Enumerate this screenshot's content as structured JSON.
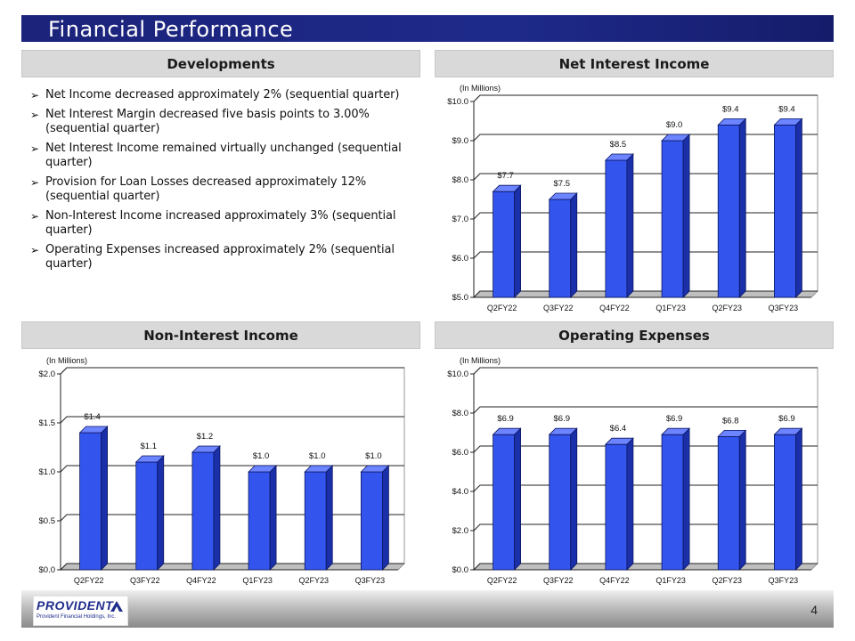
{
  "page": {
    "title": "Financial Performance",
    "page_number": "4"
  },
  "developments": {
    "heading": "Developments",
    "bullets": [
      "Net Income decreased approximately 2% (sequential quarter)",
      "Net Interest Margin decreased five basis points to 3.00% (sequential quarter)",
      "Net Interest Income remained virtually  unchanged (sequential quarter)",
      "Provision for Loan Losses decreased approximately 12% (sequential quarter)",
      "Non-Interest Income increased approximately 3% (sequential quarter)",
      "Operating Expenses increased approximately 2% (sequential quarter)"
    ]
  },
  "headings": {
    "nii": "Net Interest Income",
    "nonii": "Non-Interest Income",
    "opex": "Operating Expenses"
  },
  "logo": {
    "brand": "PROVIDENT",
    "subtitle": "Provident Financial Holdings, Inc."
  },
  "colors": {
    "bar": "#3355ee",
    "bar_side": "#1a2fa8",
    "bar_top": "#6c84ff",
    "title_bar": "#1e2a8a"
  },
  "chart_data": [
    {
      "id": "nii",
      "type": "bar",
      "title": "Net Interest Income",
      "units_label": "(In Millions)",
      "categories": [
        "Q2FY22",
        "Q3FY22",
        "Q4FY22",
        "Q1FY23",
        "Q2FY23",
        "Q3FY23"
      ],
      "values": [
        7.7,
        7.5,
        8.5,
        9.0,
        9.4,
        9.4
      ],
      "data_labels": [
        "$7.7",
        "$7.5",
        "$8.5",
        "$9.0",
        "$9.4",
        "$9.4"
      ],
      "yticks": [
        5.0,
        6.0,
        7.0,
        8.0,
        9.0,
        10.0
      ],
      "ytick_labels": [
        "$5.0",
        "$6.0",
        "$7.0",
        "$8.0",
        "$9.0",
        "$10.0"
      ],
      "ylim": [
        5.0,
        10.0
      ]
    },
    {
      "id": "nonii",
      "type": "bar",
      "title": "Non-Interest Income",
      "units_label": "(In Millions)",
      "categories": [
        "Q2FY22",
        "Q3FY22",
        "Q4FY22",
        "Q1FY23",
        "Q2FY23",
        "Q3FY23"
      ],
      "values": [
        1.4,
        1.1,
        1.2,
        1.0,
        1.0,
        1.0
      ],
      "data_labels": [
        "$1.4",
        "$1.1",
        "$1.2",
        "$1.0",
        "$1.0",
        "$1.0"
      ],
      "yticks": [
        0.0,
        0.5,
        1.0,
        1.5,
        2.0
      ],
      "ytick_labels": [
        "$0.0",
        "$0.5",
        "$1.0",
        "$1.5",
        "$2.0"
      ],
      "ylim": [
        0.0,
        2.0
      ]
    },
    {
      "id": "opex",
      "type": "bar",
      "title": "Operating Expenses",
      "units_label": "(In Millions)",
      "categories": [
        "Q2FY22",
        "Q3FY22",
        "Q4FY22",
        "Q1FY23",
        "Q2FY23",
        "Q3FY23"
      ],
      "values": [
        6.9,
        6.9,
        6.4,
        6.9,
        6.8,
        6.9
      ],
      "data_labels": [
        "$6.9",
        "$6.9",
        "$6.4",
        "$6.9",
        "$6.8",
        "$6.9"
      ],
      "yticks": [
        0.0,
        2.0,
        4.0,
        6.0,
        8.0,
        10.0
      ],
      "ytick_labels": [
        "$0.0",
        "$2.0",
        "$4.0",
        "$6.0",
        "$8.0",
        "$10.0"
      ],
      "ylim": [
        0.0,
        10.0
      ]
    }
  ]
}
